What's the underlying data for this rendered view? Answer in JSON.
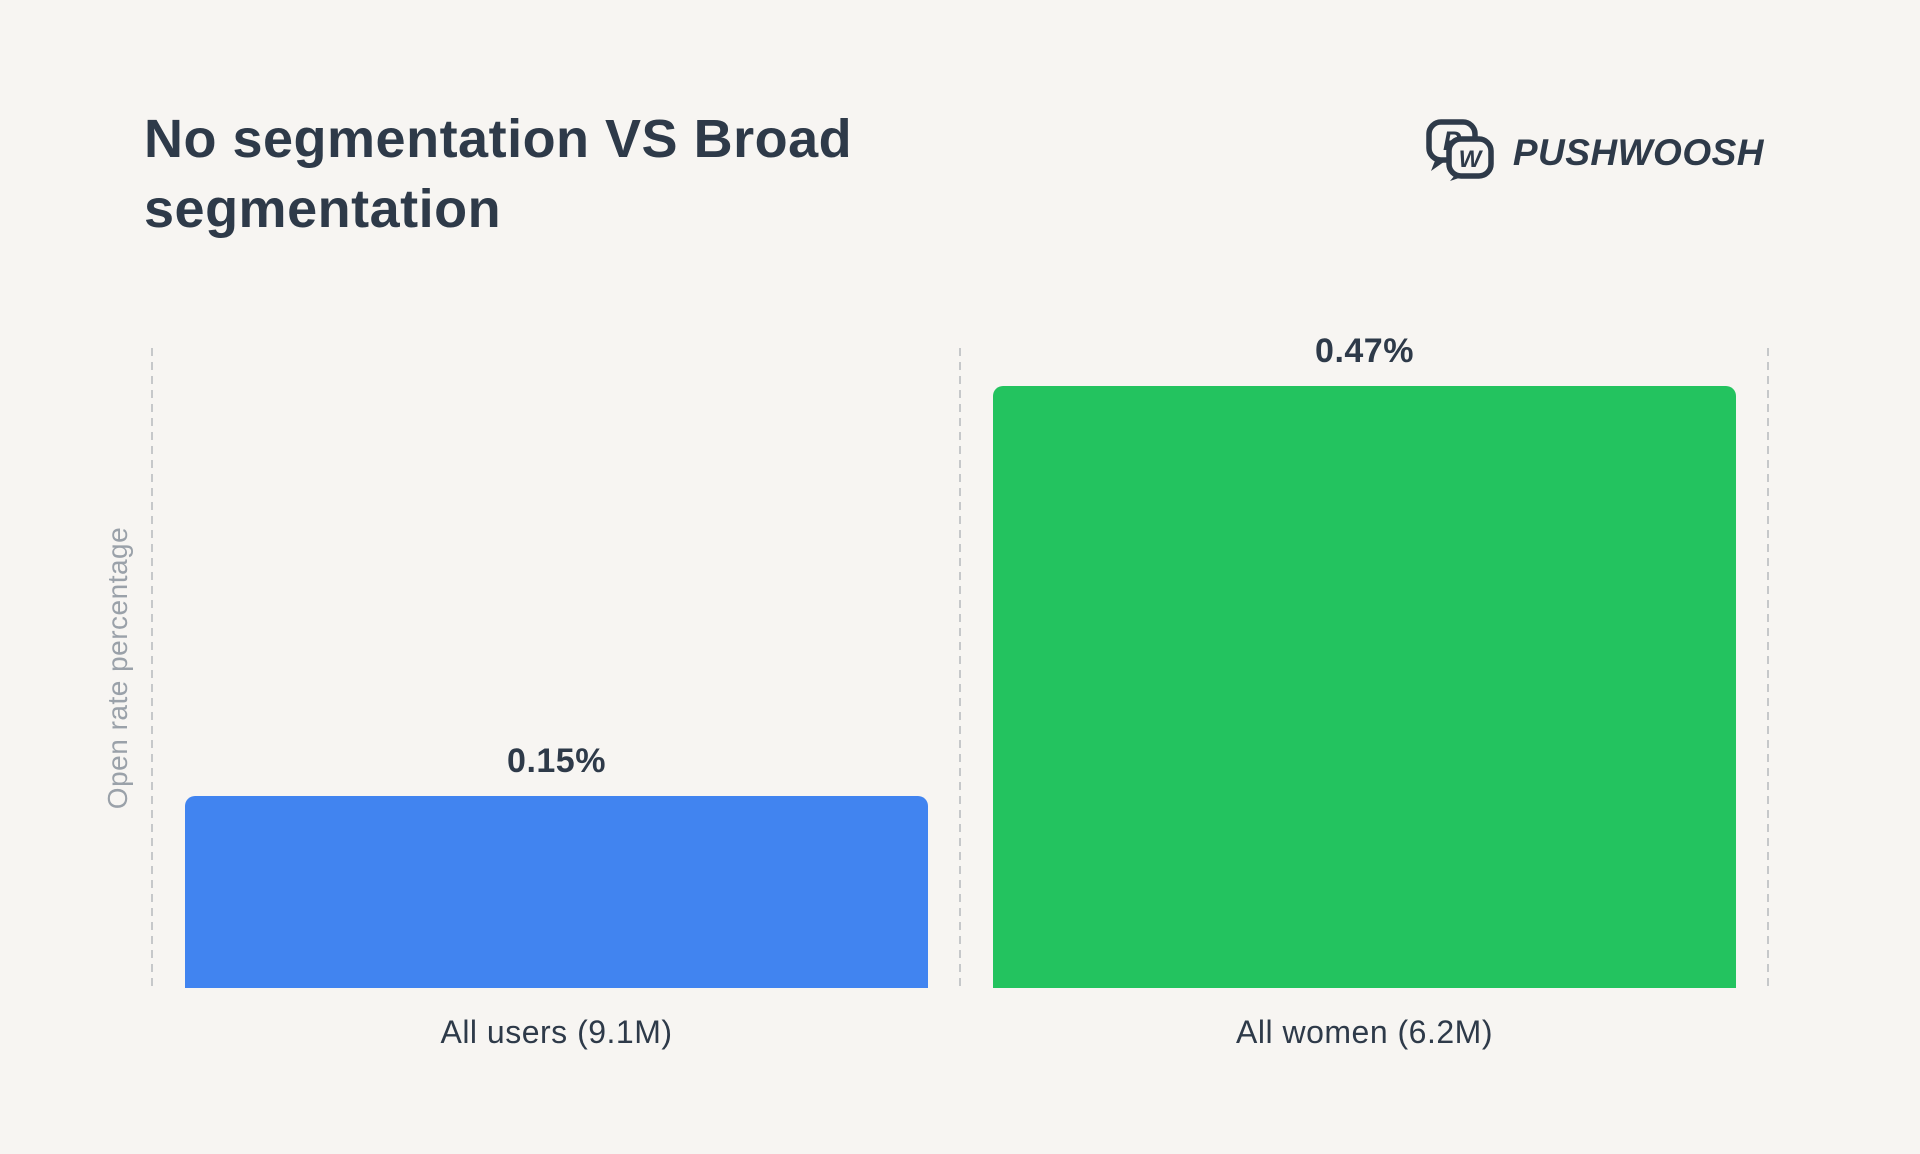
{
  "page": {
    "background_color": "#F7F5F2"
  },
  "header": {
    "title": "No segmentation VS Broad segmentation",
    "title_lines": [
      "No segmentation VS Broad",
      "segmentation"
    ]
  },
  "brand": {
    "name": "PUSHWOOSH",
    "icon": "pushwoosh-speech-bubbles-icon",
    "icon_letters": [
      "P",
      "W"
    ],
    "color": "#2E3A49"
  },
  "chart_data": {
    "type": "bar",
    "title": "No segmentation VS Broad segmentation",
    "xlabel": "",
    "ylabel": "Open rate percentage",
    "categories": [
      "All users (9.1M)",
      "All women (6.2M)"
    ],
    "series": [
      {
        "name": "Open rate percentage",
        "values": [
          0.15,
          0.47
        ]
      }
    ],
    "value_labels": [
      "0.15%",
      "0.47%"
    ],
    "bar_colors": [
      "#4184F0",
      "#23C35F"
    ],
    "ylim": [
      0,
      0.5
    ],
    "legend": "none",
    "grid": "vertical-dashed-guides",
    "guide_color": "#C6C8CA",
    "text_color": "#2E3A49",
    "axis_label_color": "#9AA1A9"
  }
}
